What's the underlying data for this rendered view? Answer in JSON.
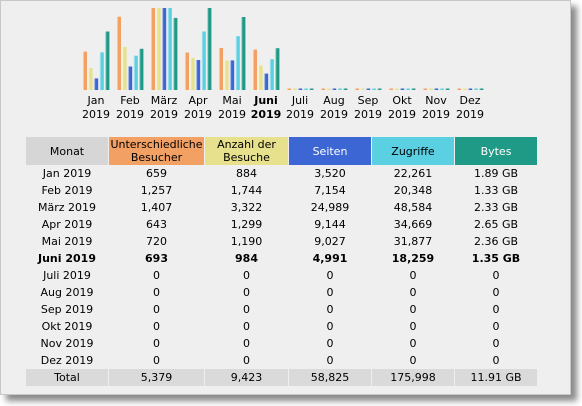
{
  "colors": {
    "besucher": "#f2a064",
    "besuche": "#e7e08c",
    "seiten": "#3b66d4",
    "zugriffe": "#5bd0e2",
    "bytes": "#1f9a86",
    "header_monat": "#d6d6d6"
  },
  "months": [
    {
      "name": "Jan",
      "year": "2019",
      "current": false
    },
    {
      "name": "Feb",
      "year": "2019",
      "current": false
    },
    {
      "name": "März",
      "year": "2019",
      "current": false
    },
    {
      "name": "Apr",
      "year": "2019",
      "current": false
    },
    {
      "name": "Mai",
      "year": "2019",
      "current": false
    },
    {
      "name": "Juni",
      "year": "2019",
      "current": true
    },
    {
      "name": "Juli",
      "year": "2019",
      "current": false
    },
    {
      "name": "Aug",
      "year": "2019",
      "current": false
    },
    {
      "name": "Sep",
      "year": "2019",
      "current": false
    },
    {
      "name": "Okt",
      "year": "2019",
      "current": false
    },
    {
      "name": "Nov",
      "year": "2019",
      "current": false
    },
    {
      "name": "Dez",
      "year": "2019",
      "current": false
    }
  ],
  "table": {
    "headers": [
      "Monat",
      "Unterschiedliche Besucher",
      "Anzahl der Besuche",
      "Seiten",
      "Zugriffe",
      "Bytes"
    ],
    "rows": [
      [
        "Jan 2019",
        "659",
        "884",
        "3,520",
        "22,261",
        "1.89 GB"
      ],
      [
        "Feb 2019",
        "1,257",
        "1,744",
        "7,154",
        "20,348",
        "1.33 GB"
      ],
      [
        "März 2019",
        "1,407",
        "3,322",
        "24,989",
        "48,584",
        "2.33 GB"
      ],
      [
        "Apr 2019",
        "643",
        "1,299",
        "9,144",
        "34,669",
        "2.65 GB"
      ],
      [
        "Mai 2019",
        "720",
        "1,190",
        "9,027",
        "31,877",
        "2.36 GB"
      ],
      [
        "Juni 2019",
        "693",
        "984",
        "4,991",
        "18,259",
        "1.35 GB"
      ],
      [
        "Juli 2019",
        "0",
        "0",
        "0",
        "0",
        "0"
      ],
      [
        "Aug 2019",
        "0",
        "0",
        "0",
        "0",
        "0"
      ],
      [
        "Sep 2019",
        "0",
        "0",
        "0",
        "0",
        "0"
      ],
      [
        "Okt 2019",
        "0",
        "0",
        "0",
        "0",
        "0"
      ],
      [
        "Nov 2019",
        "0",
        "0",
        "0",
        "0",
        "0"
      ],
      [
        "Dez 2019",
        "0",
        "0",
        "0",
        "0",
        "0"
      ]
    ],
    "total": [
      "Total",
      "5,379",
      "9,423",
      "58,825",
      "175,998",
      "11.91 GB"
    ]
  },
  "chart_data": {
    "type": "bar",
    "categories": [
      "Jan",
      "Feb",
      "März",
      "Apr",
      "Mai",
      "Juni",
      "Juli",
      "Aug",
      "Sep",
      "Okt",
      "Nov",
      "Dez"
    ],
    "series": [
      {
        "name": "Unterschiedliche Besucher",
        "values": [
          659,
          1257,
          1407,
          643,
          720,
          693,
          0,
          0,
          0,
          0,
          0,
          0
        ]
      },
      {
        "name": "Anzahl der Besuche",
        "values": [
          884,
          1744,
          3322,
          1299,
          1190,
          984,
          0,
          0,
          0,
          0,
          0,
          0
        ]
      },
      {
        "name": "Seiten",
        "values": [
          3520,
          7154,
          24989,
          9144,
          9027,
          4991,
          0,
          0,
          0,
          0,
          0,
          0
        ]
      },
      {
        "name": "Zugriffe",
        "values": [
          22261,
          20348,
          48584,
          34669,
          31877,
          18259,
          0,
          0,
          0,
          0,
          0,
          0
        ]
      },
      {
        "name": "Bytes",
        "values": [
          1.89,
          1.33,
          2.33,
          2.65,
          2.36,
          1.35,
          0,
          0,
          0,
          0,
          0,
          0
        ]
      }
    ]
  }
}
